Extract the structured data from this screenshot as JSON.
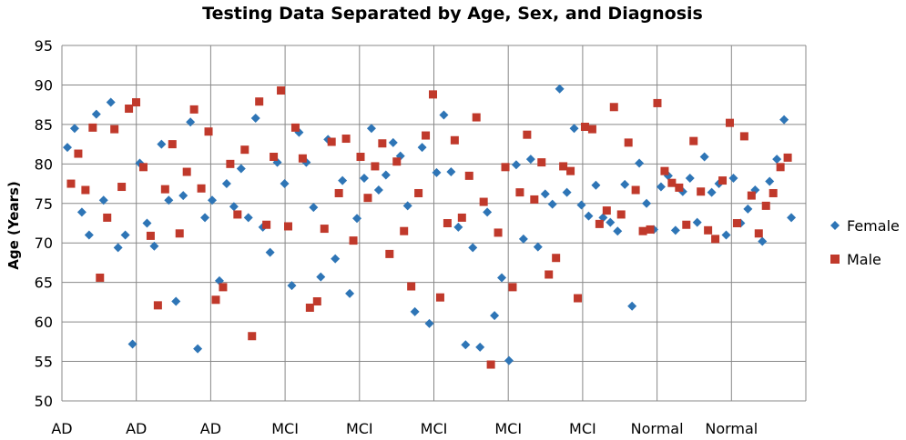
{
  "chart_data": {
    "type": "scatter",
    "title": "Testing Data Separated by Age, Sex, and Diagnosis",
    "ylabel": "Age (Years)",
    "xlabel": "",
    "ylim": [
      50,
      95
    ],
    "yticks": [
      50,
      55,
      60,
      65,
      70,
      75,
      80,
      85,
      90,
      95
    ],
    "categories": [
      "AD",
      "AD",
      "AD",
      "MCI",
      "MCI",
      "MCI",
      "MCI",
      "MCI",
      "Normal",
      "Normal"
    ],
    "grid": true,
    "legend": "right",
    "x_range": [
      0,
      405
    ],
    "series": [
      {
        "name": "Female",
        "marker": "diamond",
        "color": "#2E75B6",
        "x": [
          0,
          4,
          8,
          12,
          16,
          20,
          24,
          28,
          32,
          36,
          40,
          44,
          48,
          52,
          56,
          60,
          64,
          68,
          72,
          76,
          80,
          84,
          88,
          92,
          96,
          100,
          104,
          108,
          112,
          116,
          120,
          124,
          128,
          132,
          136,
          140,
          144,
          148,
          152,
          156,
          160,
          164,
          168,
          172,
          176,
          180,
          184,
          188,
          192,
          196,
          200,
          204,
          208,
          212,
          216,
          220,
          224,
          228,
          232,
          236,
          240,
          244,
          248,
          252,
          256,
          260,
          264,
          268,
          272,
          276,
          280,
          284,
          288,
          292,
          296,
          300,
          304,
          308,
          312,
          316,
          320,
          324,
          328,
          332,
          336,
          340,
          344,
          348,
          352,
          356,
          360,
          364,
          368,
          372,
          376,
          380,
          384,
          388,
          392,
          396,
          400
        ],
        "y": [
          82.1,
          84.5,
          73.9,
          71.0,
          86.3,
          75.4,
          87.8,
          69.4,
          71.0,
          57.2,
          80.1,
          72.5,
          69.6,
          82.5,
          75.4,
          62.6,
          76.0,
          85.3,
          56.6,
          73.2,
          75.4,
          65.2,
          77.5,
          74.6,
          79.4,
          73.2,
          85.8,
          72.0,
          68.8,
          80.2,
          77.5,
          64.6,
          84.0,
          80.2,
          74.5,
          65.7,
          83.1,
          68.0,
          77.9,
          63.6,
          73.1,
          78.2,
          84.5,
          76.7,
          78.6,
          82.7,
          81.0,
          74.7,
          61.3,
          82.1,
          59.8,
          78.9,
          86.2,
          79.0,
          72.0,
          57.1,
          69.4,
          56.8,
          73.9,
          60.8,
          65.6,
          55.1,
          79.9,
          70.5,
          80.6,
          69.5,
          76.2,
          74.9,
          89.5,
          76.4,
          84.5,
          74.8,
          73.4,
          77.3,
          73.2,
          72.6,
          71.5,
          77.4,
          62.0,
          80.1,
          75.0,
          71.7,
          77.1,
          78.5,
          71.6,
          76.5,
          78.2,
          72.6,
          80.9,
          76.4,
          77.5,
          71.0,
          78.2,
          72.5,
          74.3,
          76.7,
          70.2,
          77.8,
          80.6,
          85.6,
          73.2
        ]
      },
      {
        "name": "Male",
        "marker": "square",
        "color": "#C0392B",
        "x": [
          2,
          6,
          10,
          14,
          18,
          22,
          26,
          30,
          34,
          38,
          42,
          46,
          50,
          54,
          58,
          62,
          66,
          70,
          74,
          78,
          82,
          86,
          90,
          94,
          98,
          102,
          106,
          110,
          114,
          118,
          122,
          126,
          130,
          134,
          138,
          142,
          146,
          150,
          154,
          158,
          162,
          166,
          170,
          174,
          178,
          182,
          186,
          190,
          194,
          198,
          202,
          206,
          210,
          214,
          218,
          222,
          226,
          230,
          234,
          238,
          242,
          246,
          250,
          254,
          258,
          262,
          266,
          270,
          274,
          278,
          282,
          286,
          290,
          294,
          298,
          302,
          306,
          310,
          314,
          318,
          322,
          326,
          330,
          334,
          338,
          342,
          346,
          350,
          354,
          358,
          362,
          366,
          370,
          374,
          378,
          382,
          386,
          390,
          394,
          398
        ],
        "y": [
          77.5,
          81.3,
          76.7,
          84.6,
          65.6,
          73.2,
          84.4,
          77.1,
          87.0,
          87.8,
          79.6,
          70.9,
          62.1,
          76.8,
          82.5,
          71.2,
          79.0,
          86.9,
          76.9,
          84.1,
          62.8,
          64.4,
          80.0,
          73.6,
          81.8,
          58.2,
          87.9,
          72.3,
          80.9,
          89.3,
          72.1,
          84.6,
          80.7,
          61.8,
          62.6,
          71.8,
          82.8,
          76.3,
          83.2,
          70.3,
          80.9,
          75.7,
          79.7,
          82.6,
          68.6,
          80.3,
          71.5,
          64.5,
          76.3,
          83.6,
          88.8,
          63.1,
          72.5,
          83.0,
          73.2,
          78.5,
          85.9,
          75.2,
          54.6,
          71.3,
          79.6,
          64.4,
          76.4,
          83.7,
          75.5,
          80.2,
          66.0,
          68.1,
          79.7,
          79.1,
          63.0,
          84.7,
          84.4,
          72.4,
          74.1,
          87.2,
          73.6,
          82.7,
          76.7,
          71.5,
          71.7,
          87.7,
          79.1,
          77.6,
          77.0,
          72.3,
          82.9,
          76.5,
          71.6,
          70.5,
          77.9,
          85.2,
          72.5,
          83.5,
          76.0,
          71.2,
          74.7,
          76.3,
          79.6,
          80.8
        ]
      }
    ]
  }
}
